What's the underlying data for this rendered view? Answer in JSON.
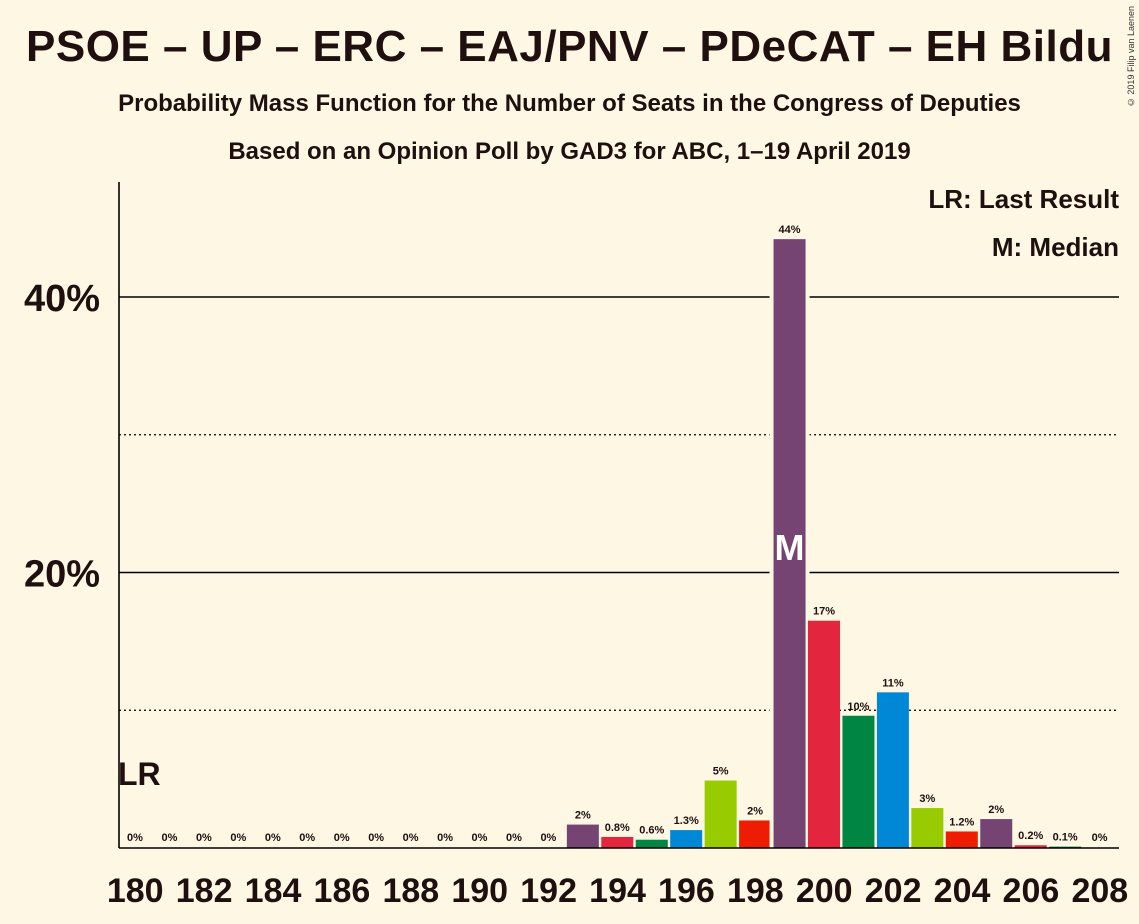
{
  "title": "PSOE – UP – ERC – EAJ/PNV – PDeCAT – EH Bildu",
  "subtitle": "Probability Mass Function for the Number of Seats in the Congress of Deputies",
  "subtitle2": "Based on an Opinion Poll by GAD3 for ABC, 1–19 April 2019",
  "copyright": "© 2019 Filip van Laenen",
  "legend": {
    "lr": "LR: Last Result",
    "m": "M: Median"
  },
  "colors": {
    "background": "#fdf7e4",
    "PSOE": "#754473",
    "UP": "#e3263e",
    "EH_Bildu": "#008542",
    "EAJ_PNV": "#0087d6",
    "PDeCAT": "#99cc00",
    "ERC": "#ee1c00"
  },
  "chart_data": {
    "type": "bar",
    "xlabel": "",
    "ylabel": "",
    "ylim": [
      0,
      48
    ],
    "y_ticks": [
      {
        "value": 20,
        "label": "20%"
      },
      {
        "value": 40,
        "label": "40%"
      }
    ],
    "dotted_gridlines": [
      10,
      30
    ],
    "x_ticks": [
      "180",
      "182",
      "184",
      "186",
      "188",
      "190",
      "192",
      "194",
      "196",
      "198",
      "200",
      "202",
      "204",
      "206",
      "208"
    ],
    "last_result_seat": 180,
    "last_result_marker": "LR",
    "median_seat": 199,
    "median_marker": "M",
    "bars": [
      {
        "seat": 180,
        "value": 0,
        "label": "0%",
        "color": "#754473"
      },
      {
        "seat": 181,
        "value": 0,
        "label": "0%",
        "color": "#e3263e"
      },
      {
        "seat": 182,
        "value": 0,
        "label": "0%",
        "color": "#008542"
      },
      {
        "seat": 183,
        "value": 0,
        "label": "0%",
        "color": "#0087d6"
      },
      {
        "seat": 184,
        "value": 0,
        "label": "0%",
        "color": "#99cc00"
      },
      {
        "seat": 185,
        "value": 0,
        "label": "0%",
        "color": "#ee1c00"
      },
      {
        "seat": 186,
        "value": 0,
        "label": "0%",
        "color": "#754473"
      },
      {
        "seat": 187,
        "value": 0,
        "label": "0%",
        "color": "#e3263e"
      },
      {
        "seat": 188,
        "value": 0,
        "label": "0%",
        "color": "#008542"
      },
      {
        "seat": 189,
        "value": 0,
        "label": "0%",
        "color": "#0087d6"
      },
      {
        "seat": 190,
        "value": 0,
        "label": "0%",
        "color": "#99cc00"
      },
      {
        "seat": 191,
        "value": 0,
        "label": "0%",
        "color": "#ee1c00"
      },
      {
        "seat": 192,
        "value": 0,
        "label": "0%",
        "color": "#754473"
      },
      {
        "seat": 193,
        "value": 1.7,
        "label": "2%",
        "color": "#754473"
      },
      {
        "seat": 194,
        "value": 0.8,
        "label": "0.8%",
        "color": "#e3263e"
      },
      {
        "seat": 195,
        "value": 0.6,
        "label": "0.6%",
        "color": "#008542"
      },
      {
        "seat": 196,
        "value": 1.3,
        "label": "1.3%",
        "color": "#0087d6"
      },
      {
        "seat": 197,
        "value": 4.9,
        "label": "5%",
        "color": "#99cc00"
      },
      {
        "seat": 198,
        "value": 2.0,
        "label": "2%",
        "color": "#ee1c00"
      },
      {
        "seat": 199,
        "value": 44.2,
        "label": "44%",
        "color": "#754473"
      },
      {
        "seat": 200,
        "value": 16.5,
        "label": "17%",
        "color": "#e3263e"
      },
      {
        "seat": 201,
        "value": 9.6,
        "label": "10%",
        "color": "#008542"
      },
      {
        "seat": 202,
        "value": 11.3,
        "label": "11%",
        "color": "#0087d6"
      },
      {
        "seat": 203,
        "value": 2.9,
        "label": "3%",
        "color": "#99cc00"
      },
      {
        "seat": 204,
        "value": 1.2,
        "label": "1.2%",
        "color": "#ee1c00"
      },
      {
        "seat": 205,
        "value": 2.1,
        "label": "2%",
        "color": "#754473"
      },
      {
        "seat": 206,
        "value": 0.2,
        "label": "0.2%",
        "color": "#e3263e"
      },
      {
        "seat": 207,
        "value": 0.1,
        "label": "0.1%",
        "color": "#008542"
      },
      {
        "seat": 208,
        "value": 0,
        "label": "0%",
        "color": "#0087d6"
      }
    ]
  }
}
